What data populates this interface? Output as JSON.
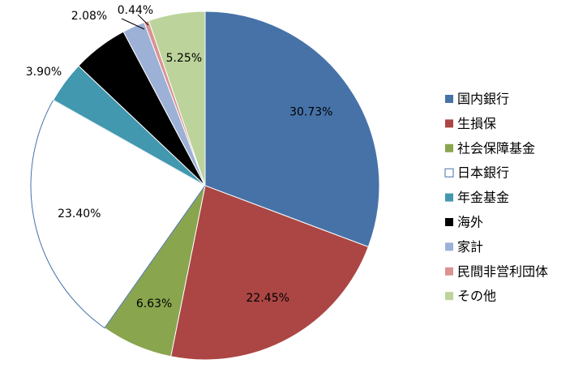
{
  "chart_data": {
    "type": "pie",
    "title": "",
    "start_angle_deg": 0,
    "direction": "clockwise",
    "legend_placement": "right",
    "slices": [
      {
        "label": "国内銀行",
        "value": 30.73,
        "display": "30.73%",
        "color": "#4672A8",
        "stroke": "#FFFFFF"
      },
      {
        "label": "生損保",
        "value": 22.45,
        "display": "22.45%",
        "color": "#AB4644",
        "stroke": "#FFFFFF"
      },
      {
        "label": "社会保障基金",
        "value": 6.63,
        "display": "6.63%",
        "color": "#89A54E",
        "stroke": "#FFFFFF"
      },
      {
        "label": "日本銀行",
        "value": 23.4,
        "display": "23.40%",
        "color": "#FFFFFF",
        "stroke": "#4672A8"
      },
      {
        "label": "年金基金",
        "value": 3.9,
        "display": "3.90%",
        "color": "#4198AF",
        "stroke": "#FFFFFF"
      },
      {
        "label": "海外",
        "value": 5.17,
        "display": "",
        "color": "#000000",
        "stroke": "#FFFFFF"
      },
      {
        "label": "家計",
        "value": 2.08,
        "display": "2.08%",
        "color": "#9DB0D6",
        "stroke": "#FFFFFF"
      },
      {
        "label": "民間非営利団体",
        "value": 0.44,
        "display": "0.44%",
        "color": "#D89492",
        "stroke": "#FFFFFF"
      },
      {
        "label": "その他",
        "value": 5.25,
        "display": "5.25%",
        "color": "#BCD39B",
        "stroke": "#FFFFFF"
      }
    ]
  }
}
